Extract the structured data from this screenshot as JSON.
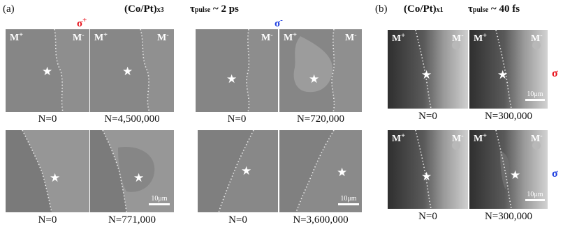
{
  "panel_a": {
    "label": "(a)",
    "sample": "(Co/Pt)",
    "sample_sub": "x3",
    "tau_symbol": "τ",
    "tau_sub": "pulse",
    "tau_value": " ~ 2 ps",
    "sigma_plus": "σ",
    "sigma_plus_sup": "+",
    "sigma_minus": "σ",
    "sigma_minus_sup": "-",
    "sigma_plus_color": "#e8111b",
    "sigma_minus_color": "#1f3fe0",
    "captions": [
      "N=0",
      "N=4,500,000",
      "N=0",
      "N=720,000",
      "N=0",
      "N=771,000",
      "N=0",
      "N=3,600,000"
    ],
    "m_plus": "M",
    "m_plus_sup": "+",
    "m_minus": "M",
    "m_minus_sup": "-",
    "scalebar": "10μm",
    "star": "★"
  },
  "panel_b": {
    "label": "(b)",
    "sample": "(Co/Pt)",
    "sample_sub": "x1",
    "tau_symbol": "τ",
    "tau_sub": "pulse",
    "tau_value": " ~ 40 fs",
    "sigma_right_top": "σ",
    "sigma_right_bottom": "σ",
    "sigma_top_color": "#e8111b",
    "sigma_bottom_color": "#1f3fe0",
    "captions": [
      "N=0",
      "N=300,000",
      "N=0",
      "N=300,000"
    ],
    "m_plus": "M",
    "m_plus_sup": "+",
    "m_minus": "M",
    "m_minus_sup": "-",
    "scalebar": "10μm",
    "star": "★"
  }
}
